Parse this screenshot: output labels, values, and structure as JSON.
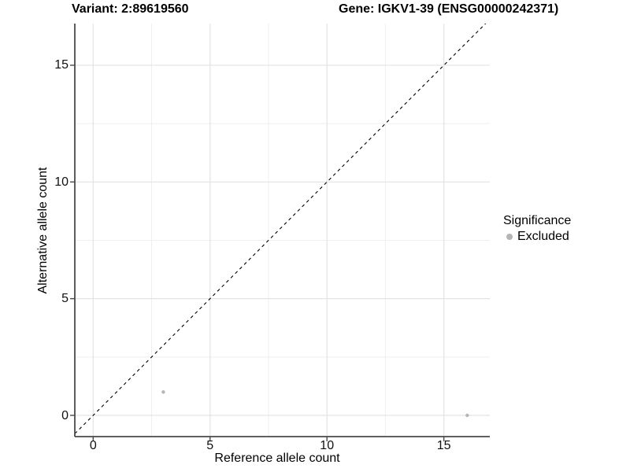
{
  "titles": {
    "left": "Variant: 2:89619560",
    "right": "Gene: IGKV1-39 (ENSG00000242371)"
  },
  "legend": {
    "title": "Significance",
    "items": [
      {
        "label": "Excluded",
        "marker": "circle",
        "color": "#b5b5b5"
      }
    ]
  },
  "chart_data": {
    "type": "scatter",
    "title": "Variant: 2:89619560   Gene: IGKV1-39 (ENSG00000242371)",
    "xlabel": "Reference allele count",
    "ylabel": "Alternative allele count",
    "x_ticks": [
      0,
      5,
      10,
      15
    ],
    "y_ticks": [
      0,
      5,
      10,
      15
    ],
    "x_minor_gridlines": [
      2.5,
      7.5,
      12.5
    ],
    "y_minor_gridlines": [
      2.5,
      7.5,
      12.5
    ],
    "xlim": [
      -0.78,
      16.95
    ],
    "ylim": [
      -0.91,
      16.78
    ],
    "grid": "major+minor",
    "legend_position": "right",
    "series": [
      {
        "name": "Excluded",
        "color": "#b5b5b5",
        "points": [
          {
            "x": 3,
            "y": 1
          },
          {
            "x": 16,
            "y": 0
          }
        ]
      }
    ],
    "reference_line": {
      "kind": "identity y=x",
      "style": "dashed",
      "color": "#000000"
    }
  },
  "colors": {
    "background": "#ffffff",
    "grid_major": "#e3e3e3",
    "grid_minor": "#efefef",
    "axis": "#4a4a4a",
    "text": "#000000",
    "point": "#b5b5b5"
  }
}
